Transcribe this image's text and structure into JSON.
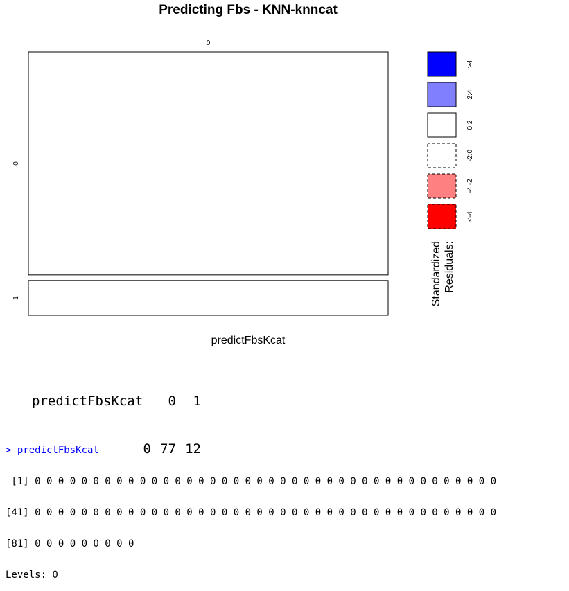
{
  "chart_data": {
    "type": "mosaic",
    "title": "Predicting Fbs - KNN-knncat",
    "xlabel": "predictFbsKcat",
    "x_levels": [
      "0"
    ],
    "y_levels": [
      "0",
      "1"
    ],
    "counts": [
      [
        77
      ],
      [
        12
      ]
    ],
    "residual_shading": [
      "#ffffff",
      "#ffffff"
    ],
    "residual_dashed": [
      false,
      false
    ],
    "legend": {
      "title_line1": "Standardized",
      "title_line2": "Residuals:",
      "entries": [
        {
          "label": ">4",
          "color": "#0000ff",
          "dashed": false
        },
        {
          "label": "2:4",
          "color": "#8080ff",
          "dashed": false
        },
        {
          "label": "0:2",
          "color": "#ffffff",
          "dashed": false
        },
        {
          "label": "-2:0",
          "color": "#ffffff",
          "dashed": true
        },
        {
          "label": "-4:-2",
          "color": "#ff8080",
          "dashed": true
        },
        {
          "label": "<-4",
          "color": "#ff0000",
          "dashed": true
        }
      ]
    }
  },
  "table": {
    "header": [
      "predictFbsKcat",
      "0",
      "1"
    ],
    "row": [
      "",
      "0",
      "77",
      "12"
    ]
  },
  "console": {
    "prompt": ">",
    "command": "predictFbsKcat",
    "lines": [
      " [1] 0 0 0 0 0 0 0 0 0 0 0 0 0 0 0 0 0 0 0 0 0 0 0 0 0 0 0 0 0 0 0 0 0 0 0 0 0 0 0 0",
      "[41] 0 0 0 0 0 0 0 0 0 0 0 0 0 0 0 0 0 0 0 0 0 0 0 0 0 0 0 0 0 0 0 0 0 0 0 0 0 0 0 0",
      "[81] 0 0 0 0 0 0 0 0 0",
      "Levels: 0"
    ]
  }
}
